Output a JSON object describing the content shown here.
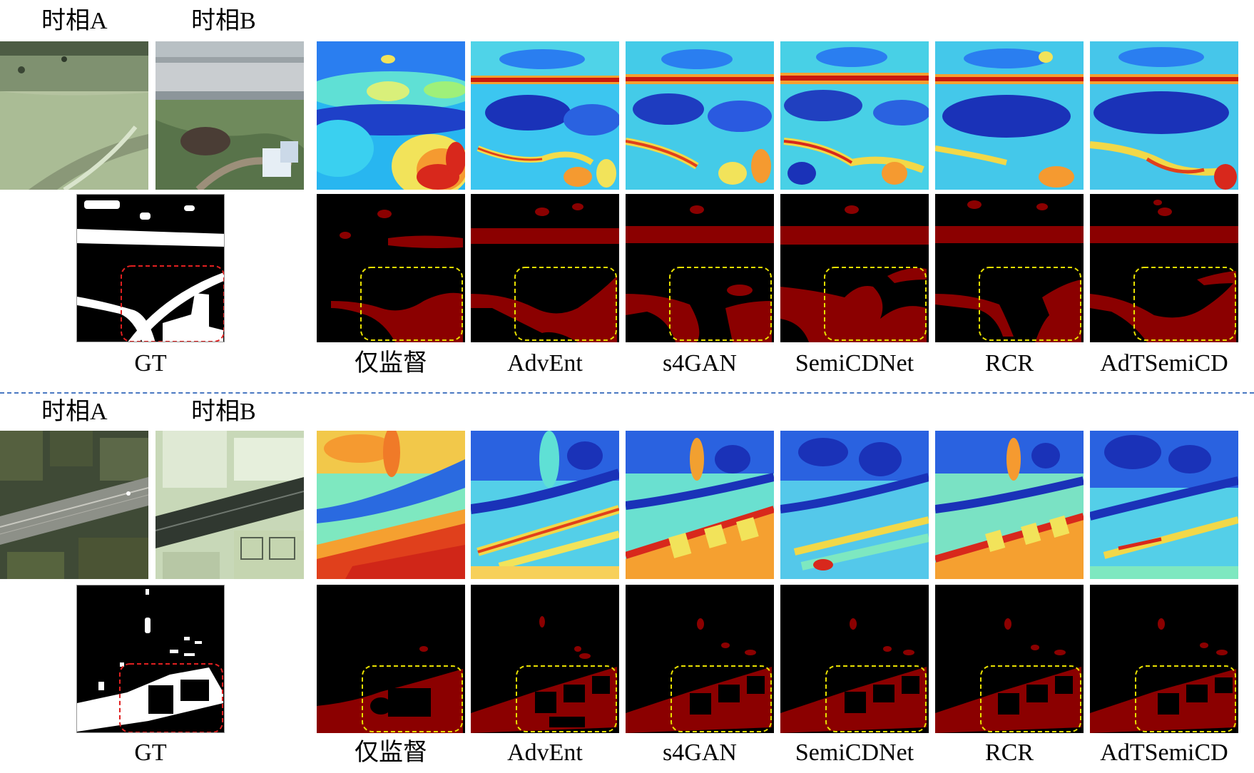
{
  "groups": [
    {
      "time_a_label": "时相A",
      "time_b_label": "时相B",
      "gt_label": "GT",
      "method_labels": [
        "仅监督",
        "AdvEnt",
        "s4GAN",
        "SemiCDNet",
        "RCR",
        "AdTSemiCD"
      ]
    },
    {
      "time_a_label": "时相A",
      "time_b_label": "时相B",
      "gt_label": "GT",
      "method_labels": [
        "仅监督",
        "AdvEnt",
        "s4GAN",
        "SemiCDNet",
        "RCR",
        "AdTSemiCD"
      ]
    }
  ],
  "colors": {
    "divider": "#4a78c2",
    "change_mask": "#8b0000",
    "gt_box": "#e02020",
    "focus_box": "#e8e000"
  }
}
